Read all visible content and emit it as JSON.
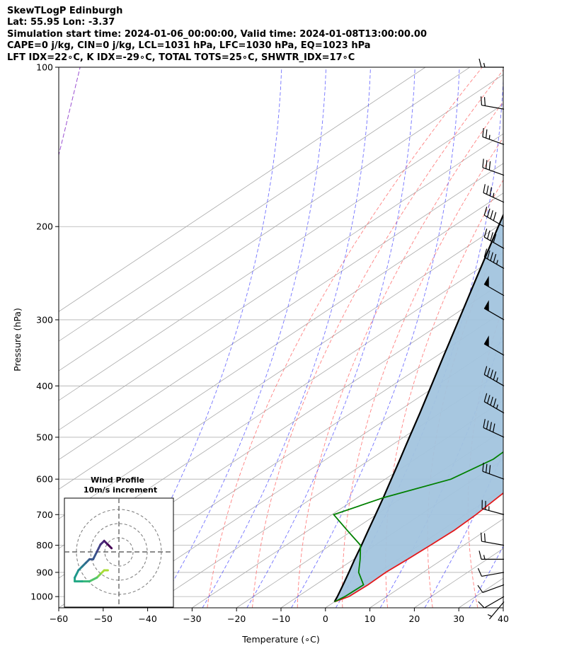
{
  "header": {
    "line1": "SkewTLogP Edinburgh",
    "line2": "Lat: 55.95   Lon: -3.37",
    "line3": "Simulation start time: 2024-01-06_00:00:00, Valid time: 2024-01-08T13:00:00.00",
    "line4": "CAPE=0 j/kg, CIN=0 j/kg, LCL=1031 hPa, LFC=1030 hPa, EQ=1023 hPa",
    "line5": "LFT IDX=22∘C, K IDX=-29∘C, TOTAL TOTS=25∘C, SHWTR_IDX=17∘C"
  },
  "chart_data": {
    "type": "line",
    "title": "SkewTLogP Edinburgh",
    "xlabel": "Temperature (∘C)",
    "ylabel": "Pressure (hPa)",
    "xlim": [
      -60,
      40
    ],
    "ylim": [
      1050,
      100
    ],
    "y_scale": "log",
    "skew": true,
    "grid": true,
    "x_ticks": [
      -60,
      -50,
      -40,
      -30,
      -20,
      -10,
      0,
      10,
      20,
      30,
      40
    ],
    "x_tick_labels": [
      "−60",
      "−50",
      "−40",
      "−30",
      "−20",
      "−10",
      "0",
      "10",
      "20",
      "30",
      "40"
    ],
    "y_ticks": [
      1000,
      900,
      800,
      700,
      600,
      500,
      400,
      300,
      200,
      100
    ],
    "y_tick_labels": [
      "1000",
      "900",
      "800",
      "700",
      "600",
      "500",
      "400",
      "300",
      "200",
      "100"
    ],
    "colors": {
      "temperature": "#e31a1c",
      "dewpoint": "#008000",
      "parcel": "#000000",
      "shading": "#a2c4de",
      "dry_adiabats": "#ff6b6b",
      "moist_adiabats": "#4444ff",
      "mixing_ratio": "#9a4fd1",
      "isotherms": "#aaaaaa"
    },
    "series": [
      {
        "key": "temperature",
        "pressure": [
          1023,
          1000,
          950,
          900,
          850,
          800,
          750,
          700,
          650,
          600,
          550,
          500,
          450,
          400,
          350,
          320,
          300,
          270,
          240,
          220,
          200,
          180,
          160,
          150,
          140,
          130,
          120,
          110,
          100
        ],
        "values": [
          0,
          1.5,
          1.8,
          1.6,
          2.1,
          2.5,
          2.8,
          2.4,
          1.5,
          0.6,
          0.0,
          -0.4,
          -1.9,
          -5.8,
          -9.9,
          -12.2,
          -13.7,
          -15.4,
          -16.5,
          -16.4,
          -13.7,
          -7.4,
          -1.1,
          1.8,
          5.3,
          7.2,
          9.4,
          11.0,
          12.4
        ]
      },
      {
        "key": "dewpoint",
        "pressure": [
          1023,
          1000,
          950,
          900,
          850,
          800,
          750,
          700,
          650,
          600,
          550,
          500,
          450,
          420,
          400,
          360,
          330,
          300,
          270,
          240,
          220,
          200,
          180,
          170,
          160,
          150,
          130,
          110,
          100
        ],
        "values": [
          0,
          0.6,
          0.8,
          -4.5,
          -8.6,
          -13.2,
          -21.2,
          -29.6,
          -24.1,
          -15.2,
          -12.4,
          -13.0,
          -18.1,
          -20.4,
          -20.0,
          -14.3,
          -15.2,
          -17.2,
          -26.2,
          -26.7,
          -25.8,
          -21.5,
          -15.6,
          -14.5,
          -16.9,
          -16.4,
          -12.5,
          -7.2,
          -4.8
        ]
      },
      {
        "key": "parcel",
        "pressure": [
          1023,
          1000,
          950,
          900,
          850,
          800,
          750,
          700,
          650,
          600,
          550,
          500,
          450,
          400,
          350,
          300,
          250,
          200,
          150,
          100
        ],
        "values": [
          0,
          -1.1,
          -3.8,
          -6.7,
          -9.8,
          -13.0,
          -16.5,
          -20.2,
          -24.2,
          -28.6,
          -33.4,
          -38.7,
          -44.5,
          -51.1,
          -58.6,
          -67.2,
          -77.4,
          -89.8,
          -105.7,
          -128.5
        ]
      }
    ],
    "wind_barbs": {
      "pressure": [
        1023,
        1000,
        950,
        900,
        850,
        800,
        700,
        600,
        500,
        450,
        400,
        350,
        300,
        270,
        240,
        220,
        200,
        180,
        160,
        140,
        120,
        100
      ],
      "speed_kt": [
        5,
        10,
        10,
        10,
        15,
        20,
        25,
        30,
        40,
        45,
        45,
        50,
        50,
        50,
        45,
        40,
        40,
        35,
        30,
        25,
        20,
        15
      ],
      "direction_deg": [
        220,
        240,
        250,
        260,
        270,
        280,
        285,
        290,
        295,
        300,
        300,
        300,
        300,
        300,
        300,
        300,
        300,
        295,
        290,
        290,
        280,
        270
      ]
    },
    "inset": {
      "title_line1": "Wind Profile",
      "title_line2": "10m/s increment",
      "hodograph_u": [
        -3,
        -4,
        -5,
        -6,
        -8,
        -10,
        -12,
        -12,
        -11,
        -10,
        -9,
        -8,
        -7,
        -6,
        -5,
        -4,
        -3,
        -2
      ],
      "hodograph_v": [
        -5,
        -5,
        -6,
        -7,
        -8,
        -8,
        -8,
        -7,
        -5,
        -4,
        -3,
        -2,
        -2,
        0,
        2,
        3,
        2,
        1
      ]
    }
  }
}
